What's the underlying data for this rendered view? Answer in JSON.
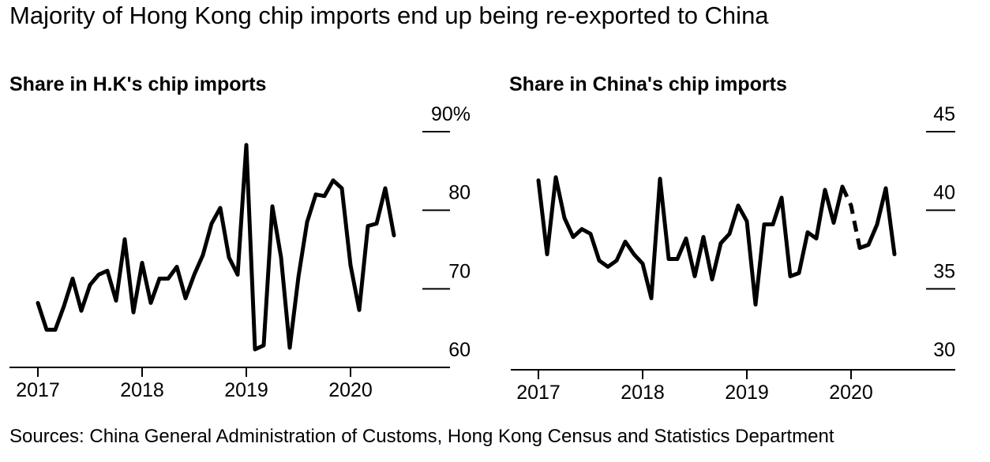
{
  "title": "Majority of Hong Kong chip imports end up being re-exported to China",
  "source": "Sources: China General Administration of Customs, Hong Kong Census and Statistics Department",
  "chart_data": [
    {
      "type": "line",
      "title": "Share in H.K's chip imports",
      "x_start": "2017-01",
      "x_ticks": [
        "2017",
        "2018",
        "2019",
        "2020"
      ],
      "xlim": [
        "2016-12",
        "2020-12"
      ],
      "ylim": [
        60,
        90
      ],
      "y_ticks": [
        "90%",
        "80",
        "70",
        "60"
      ],
      "y_tick_values": [
        90,
        80,
        70,
        60
      ],
      "gridlines": [
        90,
        80,
        70
      ],
      "series": [
        {
          "values": [
            68.2,
            64.8,
            64.8,
            67.8,
            71.3,
            67.2,
            70.5,
            71.8,
            72.3,
            68.5,
            76.3,
            67.0,
            73.3,
            68.2,
            71.3,
            71.3,
            72.8,
            68.8,
            71.8,
            74.3,
            78.3,
            80.3,
            74.0,
            71.8,
            88.3,
            62.3,
            62.8,
            80.5,
            74.0,
            62.5,
            71.5,
            78.5,
            82.0,
            81.8,
            83.8,
            82.8,
            73.0,
            67.3,
            78.0,
            78.3,
            82.8,
            76.8
          ]
        }
      ]
    },
    {
      "type": "line",
      "title": "Share in China's chip imports",
      "x_start": "2017-01",
      "x_ticks": [
        "2017",
        "2018",
        "2019",
        "2020"
      ],
      "xlim": [
        "2016-12",
        "2020-12"
      ],
      "ylim": [
        30,
        45
      ],
      "y_ticks": [
        "45",
        "40",
        "35",
        "30"
      ],
      "y_tick_values": [
        45,
        40,
        35,
        30
      ],
      "gridlines": [
        45,
        40,
        35
      ],
      "series": [
        {
          "values": [
            41.9,
            37.2,
            42.1,
            39.5,
            38.3,
            38.8,
            38.5,
            36.8,
            36.4,
            36.8,
            38.0,
            37.2,
            36.6,
            34.4,
            42.0,
            36.9,
            36.9,
            38.2,
            35.8,
            38.3,
            35.6,
            37.9,
            38.5,
            40.3,
            39.3,
            34.0,
            39.1,
            39.1,
            40.8,
            35.8,
            36.0,
            38.6,
            38.2,
            41.3,
            39.2,
            41.5,
            40.3,
            37.6,
            37.8,
            39.1,
            41.4,
            37.2
          ],
          "dashed_segment": [
            "2019-12",
            "2020-02"
          ]
        }
      ]
    }
  ]
}
